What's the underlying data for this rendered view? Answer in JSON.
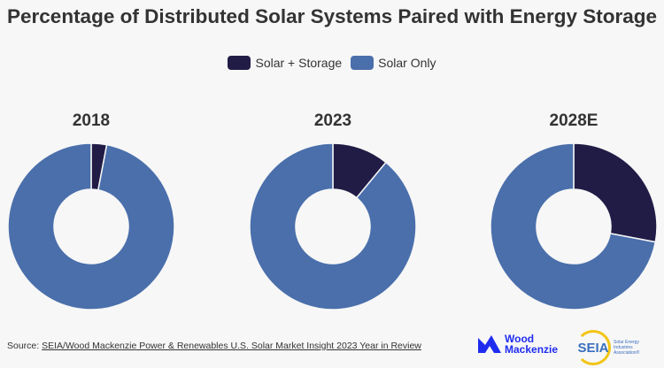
{
  "title": "Percentage of Distributed Solar Systems Paired with Energy Storage",
  "source_label": "Source:",
  "source_link": "SEIA/Wood Mackenzie Power & Renewables U.S. Solar Market Insight 2023 Year in Review",
  "logos": {
    "woodmac": "Wood Mackenzie",
    "seia": "SEIA",
    "seia_sub": "Solar Energy Industries Association"
  },
  "chart_data": [
    {
      "type": "pie",
      "donut": true,
      "title": "2018",
      "categories": [
        "Solar + Storage",
        "Solar Only"
      ],
      "values": [
        3,
        97
      ]
    },
    {
      "type": "pie",
      "donut": true,
      "title": "2023",
      "categories": [
        "Solar + Storage",
        "Solar Only"
      ],
      "values": [
        11,
        89
      ]
    },
    {
      "type": "pie",
      "donut": true,
      "title": "2028E",
      "categories": [
        "Solar + Storage",
        "Solar Only"
      ],
      "values": [
        28,
        72
      ]
    }
  ],
  "legend": [
    {
      "label": "Solar + Storage",
      "color": "#211c46"
    },
    {
      "label": "Solar Only",
      "color": "#4a6fab"
    }
  ],
  "legend_position": "top"
}
